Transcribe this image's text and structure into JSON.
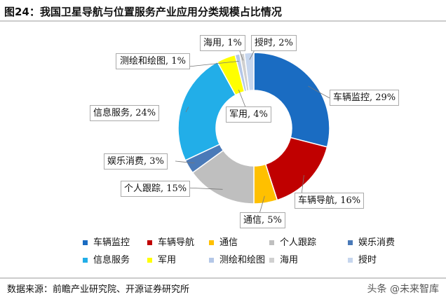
{
  "title": "图24：我国卫星导航与位置服务产业应用分类规模占比情况",
  "chart_data": {
    "type": "donut",
    "categories": [
      "车辆监控",
      "车辆导航",
      "通信",
      "个人跟踪",
      "娱乐消费",
      "信息服务",
      "军用",
      "测绘和绘图",
      "海用",
      "授时"
    ],
    "values": [
      29,
      16,
      5,
      15,
      3,
      24,
      4,
      1,
      1,
      2
    ],
    "value_labels": [
      "车辆监控, 29%",
      "车辆导航, 16%",
      "通信, 5%",
      "个人跟踪, 15%",
      "娱乐消费, 3%",
      "信息服务, 24%",
      "军用, 4%",
      "测绘和绘图, 1%",
      "海用, 1%",
      "授时, 2%"
    ],
    "colors": [
      "#1a6cc2",
      "#c00000",
      "#ffc000",
      "#bfbfbf",
      "#4a7ab8",
      "#22aee8",
      "#ffff00",
      "#b4c7e7",
      "#d0d0d0",
      "#c6d6ee"
    ]
  },
  "source": "数据来源：前瞻产业研究院、开源证券研究所",
  "watermark": "头条 @未来智库"
}
